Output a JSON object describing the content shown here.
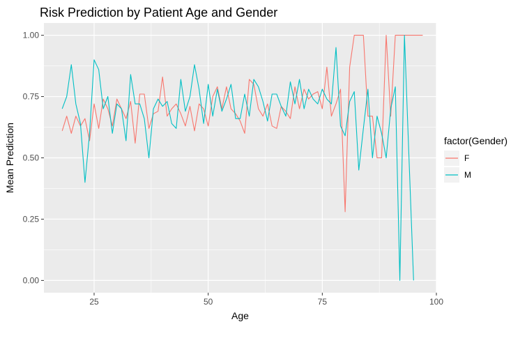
{
  "chart_data": {
    "type": "line",
    "title": "Risk Prediction by Patient Age and Gender",
    "xlabel": "Age",
    "ylabel": "Mean Prediction",
    "xlim": [
      14,
      100
    ],
    "ylim": [
      -0.05,
      1.05
    ],
    "x_ticks": [
      25,
      50,
      75,
      100
    ],
    "y_ticks": [
      0.0,
      0.25,
      0.5,
      0.75,
      1.0
    ],
    "x_tick_labels": [
      "25",
      "50",
      "75",
      "100"
    ],
    "y_tick_labels": [
      "0.00",
      "0.25",
      "0.50",
      "0.75",
      "1.00"
    ],
    "grid": true,
    "legend": {
      "title": "factor(Gender)",
      "position": "right"
    },
    "series": [
      {
        "name": "F",
        "color": "#F8766D",
        "points": [
          [
            18,
            0.61
          ],
          [
            19,
            0.67
          ],
          [
            20,
            0.6
          ],
          [
            21,
            0.67
          ],
          [
            22,
            0.63
          ],
          [
            23,
            0.66
          ],
          [
            24,
            0.57
          ],
          [
            25,
            0.72
          ],
          [
            26,
            0.62
          ],
          [
            27,
            0.74
          ],
          [
            28,
            0.7
          ],
          [
            29,
            0.63
          ],
          [
            30,
            0.74
          ],
          [
            31,
            0.7
          ],
          [
            32,
            0.66
          ],
          [
            33,
            0.73
          ],
          [
            34,
            0.56
          ],
          [
            35,
            0.76
          ],
          [
            36,
            0.76
          ],
          [
            37,
            0.62
          ],
          [
            38,
            0.68
          ],
          [
            39,
            0.69
          ],
          [
            40,
            0.83
          ],
          [
            41,
            0.67
          ],
          [
            42,
            0.7
          ],
          [
            43,
            0.72
          ],
          [
            44,
            0.68
          ],
          [
            45,
            0.63
          ],
          [
            46,
            0.71
          ],
          [
            47,
            0.61
          ],
          [
            48,
            0.72
          ],
          [
            49,
            0.7
          ],
          [
            50,
            0.63
          ],
          [
            51,
            0.75
          ],
          [
            52,
            0.79
          ],
          [
            53,
            0.7
          ],
          [
            54,
            0.79
          ],
          [
            55,
            0.7
          ],
          [
            56,
            0.68
          ],
          [
            57,
            0.65
          ],
          [
            58,
            0.6
          ],
          [
            59,
            0.82
          ],
          [
            60,
            0.8
          ],
          [
            61,
            0.7
          ],
          [
            62,
            0.67
          ],
          [
            63,
            0.72
          ],
          [
            64,
            0.63
          ],
          [
            65,
            0.62
          ],
          [
            66,
            0.71
          ],
          [
            67,
            0.69
          ],
          [
            68,
            0.66
          ],
          [
            69,
            0.79
          ],
          [
            70,
            0.7
          ],
          [
            71,
            0.78
          ],
          [
            72,
            0.74
          ],
          [
            73,
            0.76
          ],
          [
            74,
            0.77
          ],
          [
            75,
            0.7
          ],
          [
            76,
            0.87
          ],
          [
            77,
            0.67
          ],
          [
            78,
            0.72
          ],
          [
            79,
            0.78
          ],
          [
            80,
            0.28
          ],
          [
            81,
            0.87
          ],
          [
            82,
            1.0
          ],
          [
            83,
            1.0
          ],
          [
            84,
            1.0
          ],
          [
            85,
            0.67
          ],
          [
            86,
            0.67
          ],
          [
            87,
            0.5
          ],
          [
            88,
            0.5
          ],
          [
            89,
            1.0
          ],
          [
            90,
            0.67
          ],
          [
            91,
            1.0
          ],
          [
            92,
            1.0
          ],
          [
            93,
            1.0
          ],
          [
            94,
            1.0
          ],
          [
            95,
            1.0
          ],
          [
            96,
            1.0
          ],
          [
            97,
            1.0
          ]
        ]
      },
      {
        "name": "M",
        "color": "#00BFC4",
        "points": [
          [
            18,
            0.7
          ],
          [
            19,
            0.75
          ],
          [
            20,
            0.88
          ],
          [
            21,
            0.72
          ],
          [
            22,
            0.64
          ],
          [
            23,
            0.4
          ],
          [
            24,
            0.6
          ],
          [
            25,
            0.9
          ],
          [
            26,
            0.86
          ],
          [
            27,
            0.7
          ],
          [
            28,
            0.75
          ],
          [
            29,
            0.6
          ],
          [
            30,
            0.72
          ],
          [
            31,
            0.7
          ],
          [
            32,
            0.57
          ],
          [
            33,
            0.84
          ],
          [
            34,
            0.72
          ],
          [
            35,
            0.72
          ],
          [
            36,
            0.66
          ],
          [
            37,
            0.5
          ],
          [
            38,
            0.7
          ],
          [
            39,
            0.74
          ],
          [
            40,
            0.71
          ],
          [
            41,
            0.73
          ],
          [
            42,
            0.64
          ],
          [
            43,
            0.62
          ],
          [
            44,
            0.82
          ],
          [
            45,
            0.69
          ],
          [
            46,
            0.75
          ],
          [
            47,
            0.88
          ],
          [
            48,
            0.78
          ],
          [
            49,
            0.64
          ],
          [
            50,
            0.8
          ],
          [
            51,
            0.67
          ],
          [
            52,
            0.78
          ],
          [
            53,
            0.69
          ],
          [
            54,
            0.74
          ],
          [
            55,
            0.8
          ],
          [
            56,
            0.66
          ],
          [
            57,
            0.66
          ],
          [
            58,
            0.76
          ],
          [
            59,
            0.67
          ],
          [
            60,
            0.82
          ],
          [
            61,
            0.79
          ],
          [
            62,
            0.73
          ],
          [
            63,
            0.65
          ],
          [
            64,
            0.76
          ],
          [
            65,
            0.76
          ],
          [
            66,
            0.71
          ],
          [
            67,
            0.67
          ],
          [
            68,
            0.81
          ],
          [
            69,
            0.72
          ],
          [
            70,
            0.82
          ],
          [
            71,
            0.7
          ],
          [
            72,
            0.78
          ],
          [
            73,
            0.74
          ],
          [
            74,
            0.72
          ],
          [
            75,
            0.78
          ],
          [
            76,
            0.74
          ],
          [
            77,
            0.72
          ],
          [
            78,
            0.95
          ],
          [
            79,
            0.63
          ],
          [
            80,
            0.59
          ],
          [
            81,
            0.73
          ],
          [
            82,
            0.77
          ],
          [
            83,
            0.45
          ],
          [
            84,
            0.62
          ],
          [
            85,
            0.78
          ],
          [
            86,
            0.5
          ],
          [
            87,
            0.67
          ],
          [
            88,
            0.6
          ],
          [
            89,
            0.5
          ],
          [
            90,
            0.7
          ],
          [
            91,
            0.79
          ],
          [
            92,
            0.0
          ],
          [
            93,
            1.0
          ],
          [
            94,
            0.5
          ],
          [
            95,
            0.0
          ]
        ]
      }
    ]
  }
}
